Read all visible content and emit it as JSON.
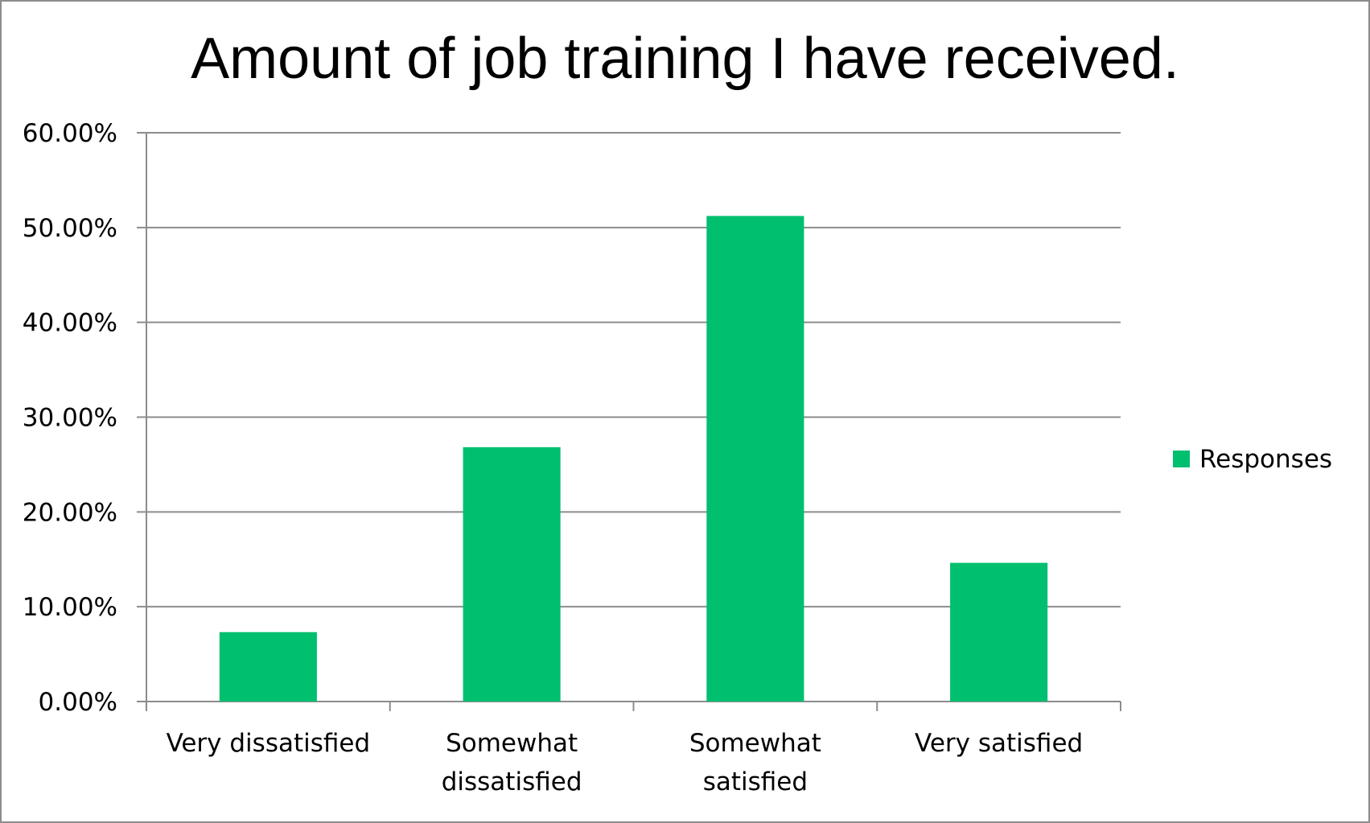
{
  "chart_data": {
    "type": "bar",
    "title": "Amount of job training I have received.",
    "categories": [
      "Very dissatisfied",
      "Somewhat dissatisfied",
      "Somewhat satisfied",
      "Very satisfied"
    ],
    "category_lines": [
      [
        "Very dissatisfied"
      ],
      [
        "Somewhat",
        "dissatisfied"
      ],
      [
        "Somewhat",
        "satisfied"
      ],
      [
        "Very satisfied"
      ]
    ],
    "series": [
      {
        "name": "Responses",
        "values": [
          7.32,
          26.83,
          51.22,
          14.63
        ],
        "color": "#00bf6f"
      }
    ],
    "ylim": [
      0,
      60
    ],
    "yticks": [
      0,
      10,
      20,
      30,
      40,
      50,
      60
    ],
    "ytick_labels": [
      "0.00%",
      "10.00%",
      "20.00%",
      "30.00%",
      "40.00%",
      "50.00%",
      "60.00%"
    ],
    "grid": true,
    "legend_position": "right",
    "xlabel": "",
    "ylabel": ""
  }
}
